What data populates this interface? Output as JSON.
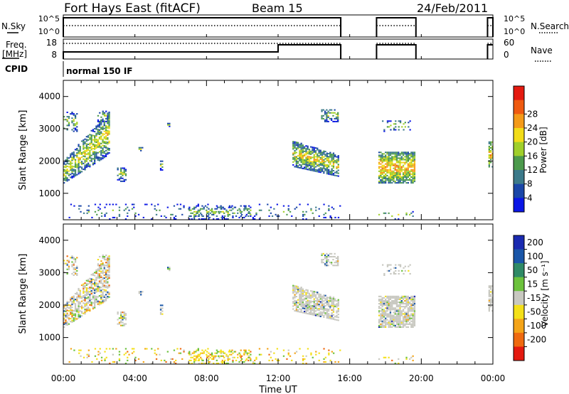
{
  "header": {
    "station": "Fort Hays East (fitACF)",
    "beam": "Beam 15",
    "date": "24/Feb/2011"
  },
  "summary_panels": {
    "nsky_label": "N.Sky",
    "freq_label_1": "Freq.",
    "freq_label_2": "[MHz]",
    "cpid_label": "CPID",
    "nsearch_label": "N.Search",
    "nave_label": "Nave",
    "noise_ticks": [
      "10^5",
      "10^0"
    ],
    "freq_ticks": [
      "18",
      "8"
    ],
    "nave_ticks": [
      "60",
      "0"
    ],
    "cpid_text": "normal 150 IF"
  },
  "chart_data": [
    {
      "type": "heatmap",
      "name": "power",
      "ylabel": "Slant Range [km]",
      "ylim": [
        180,
        4500
      ],
      "yticks": [
        "1000",
        "2000",
        "3000",
        "4000"
      ],
      "xlim": [
        0,
        24
      ],
      "colorbar": {
        "label": "Power [dB]",
        "range": [
          0,
          32
        ],
        "ticks": [
          "4",
          "8",
          "12",
          "16",
          "20",
          "24",
          "28"
        ],
        "colors": [
          "#0a16e6",
          "#1a46a8",
          "#3c7a8a",
          "#4c9a4c",
          "#a0cf2a",
          "#f2dc18",
          "#f49a18",
          "#ef5a10",
          "#e41a10"
        ]
      }
    },
    {
      "type": "heatmap",
      "name": "velocity",
      "ylabel": "Slant Range [km]",
      "ylim": [
        180,
        4500
      ],
      "yticks": [
        "1000",
        "2000",
        "3000",
        "4000"
      ],
      "xlim": [
        0,
        24
      ],
      "colorbar": {
        "label": "Velocity [m s⁻¹]",
        "ticks": [
          "200",
          "100",
          "50",
          "15",
          "-15",
          "-50",
          "-100",
          "-200"
        ],
        "colors": [
          "#1a2ab0",
          "#1a56a8",
          "#2f8a66",
          "#6cc23c",
          "#c8c8c0",
          "#f4e018",
          "#f4a418",
          "#ef6a10",
          "#e41a10"
        ]
      }
    }
  ],
  "xaxis": {
    "label": "Time UT",
    "ticks": [
      "00:00",
      "04:00",
      "08:00",
      "12:00",
      "16:00",
      "20:00",
      "00:00"
    ]
  }
}
